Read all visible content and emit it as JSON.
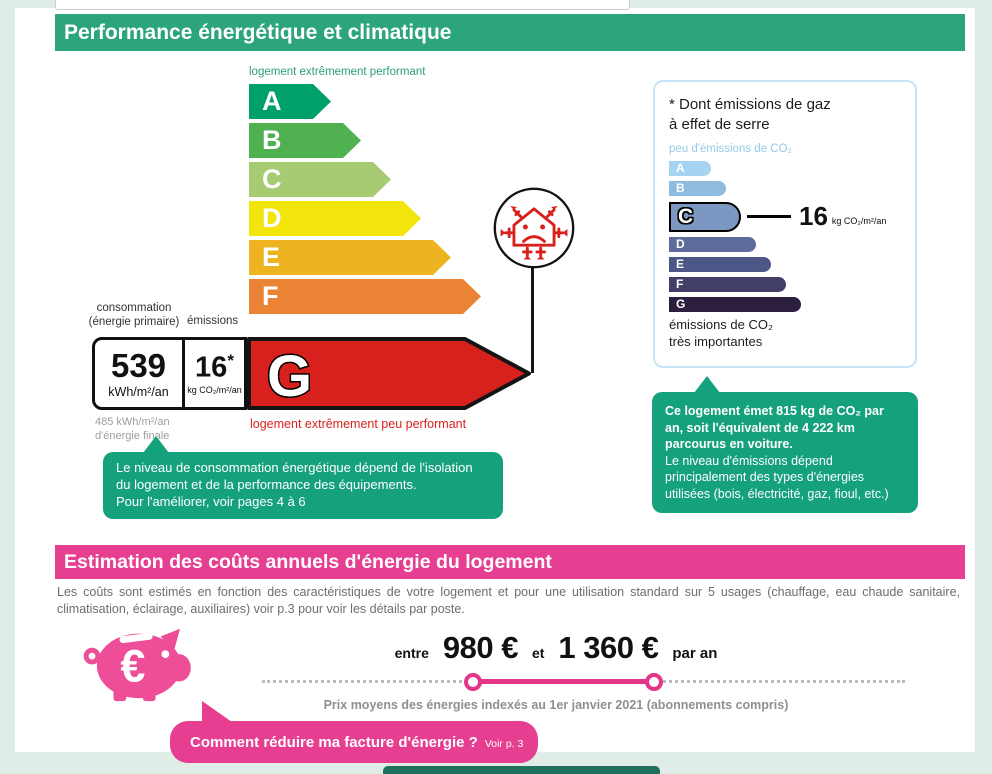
{
  "energy": {
    "title": "Performance énergétique et climatique",
    "best_label": "logement extrêmement performant",
    "worst_label": "logement extrêmement peu performant",
    "consumption_label_line1": "consommation",
    "consumption_label_line2": "(énergie primaire)",
    "emissions_label": "émissions",
    "consumption_value": "539",
    "consumption_unit": "kWh/m²/an",
    "emissions_value": "16",
    "emissions_star": "*",
    "emissions_unit": "kg CO₂/m²/an",
    "current_class": "G",
    "final_energy_line1": "485 kWh/m²/an",
    "final_energy_line2": "d'énergie finale"
  },
  "ges_panel": {
    "title_line1": "* Dont émissions de gaz",
    "title_line2": "à effet de serre",
    "low_label": "peu d'émissions de CO₂",
    "value": "16",
    "unit": "kg CO₂/m²/an",
    "high_label_line1": "émissions de CO₂",
    "high_label_line2": "très importantes"
  },
  "ges_bubble": {
    "bold_text": "Ce logement émet 815 kg de CO₂ par an, soit l'équivalent de 4 222 km parcourus en voiture.",
    "normal_text": "Le niveau d'émissions dépend principalement des types d'énergies utilisées (bois, électricité, gaz, fioul, etc.)"
  },
  "energy_bubble": {
    "line1": "Le niveau de consommation énergétique dépend de l'isolation du logement et de la performance des équipements.",
    "line2": "Pour l'améliorer, voir pages 4 à 6"
  },
  "costs": {
    "title": "Estimation des coûts annuels d'énergie du logement",
    "description": "Les coûts sont estimés en fonction des caractéristiques de votre logement et pour une utilisation standard sur 5 usages (chauffage, eau chaude sanitaire, climatisation, éclairage, auxiliaires) voir p.3 pour voir les détails par poste.",
    "entre": "entre",
    "min_display": "980 €",
    "et": "et",
    "max_display": "1 360 €",
    "par_an": "par an",
    "caption": "Prix moyens des énergies indexés au  1er janvier 2021 (abonnements compris)",
    "tip_bold": "Comment réduire ma facture d'énergie ?",
    "tip_small": "Voir p. 3"
  },
  "chart_data": [
    {
      "type": "bar",
      "name": "energy-performance-scale",
      "title": "Performance énergétique et climatique",
      "categories": [
        "A",
        "B",
        "C",
        "D",
        "E",
        "F",
        "G"
      ],
      "values": [
        1,
        2,
        3,
        4,
        5,
        6,
        7
      ],
      "colors": [
        "#00a06d",
        "#4fb150",
        "#a6cb73",
        "#f2e50c",
        "#edb41f",
        "#eb8334",
        "#d8211c"
      ],
      "current_class": "G",
      "consumption_kwh_m2_an": 539,
      "emissions_kg_co2_m2_an": 16,
      "final_energy_kwh_m2_an": 485,
      "best_label": "logement extrêmement performant",
      "worst_label": "logement extrêmement peu performant"
    },
    {
      "type": "bar",
      "name": "ges-co2-scale",
      "categories": [
        "A",
        "B",
        "C",
        "D",
        "E",
        "F",
        "G"
      ],
      "values": [
        1,
        2,
        3,
        4,
        5,
        6,
        7
      ],
      "colors": [
        "#a5d3f0",
        "#8fbbdf",
        "#7c97c2",
        "#5e6c9b",
        "#4d5787",
        "#413f68",
        "#2b1e3f"
      ],
      "current_class": "C",
      "value_kg_co2_m2_an": 16,
      "co2_per_year_kg": 815,
      "car_equivalent_km": 4222,
      "low_label": "peu d'émissions de CO₂",
      "high_label": "émissions de CO₂ très importantes"
    },
    {
      "type": "bar",
      "name": "annual-energy-cost-range",
      "categories": [
        "min",
        "max"
      ],
      "values": [
        980,
        1360
      ],
      "currency": "€",
      "period": "par an",
      "price_index_date": "1er janvier 2021"
    }
  ]
}
